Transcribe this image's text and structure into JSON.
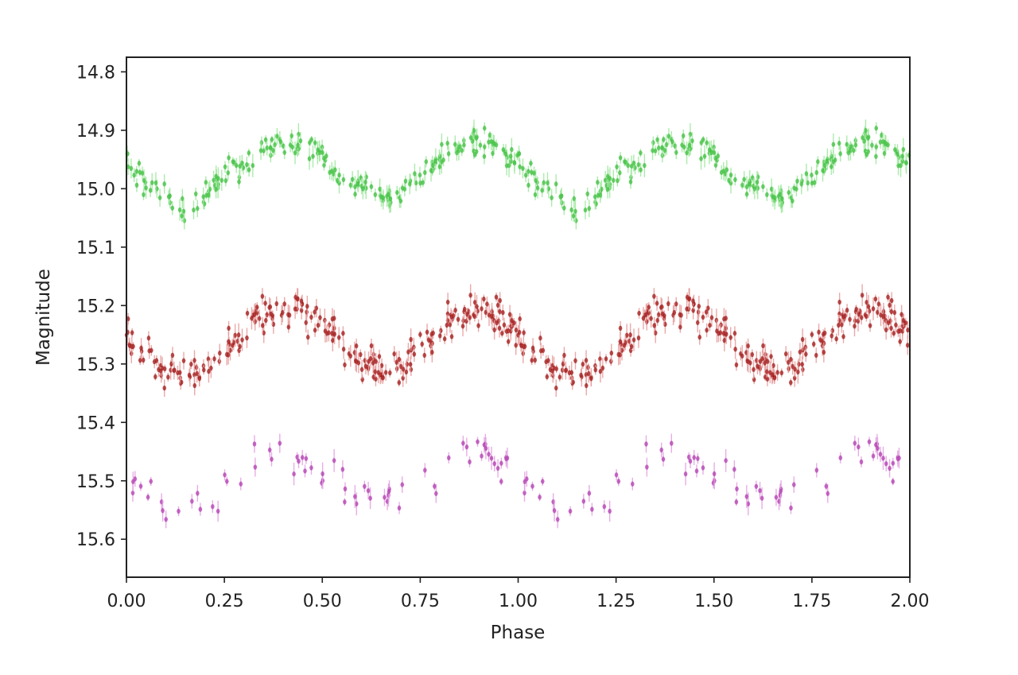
{
  "chart_data": {
    "type": "scatter",
    "title": "",
    "xlabel": "Phase",
    "ylabel": "Magnitude",
    "xlim": [
      0.0,
      2.0
    ],
    "ylim": [
      15.665,
      14.775
    ],
    "y_inverted": true,
    "grid": false,
    "legend": "none",
    "x_ticks": [
      "0.00",
      "0.25",
      "0.50",
      "0.75",
      "1.00",
      "1.25",
      "1.50",
      "1.75",
      "2.00"
    ],
    "x_tick_values": [
      0.0,
      0.25,
      0.5,
      0.75,
      1.0,
      1.25,
      1.5,
      1.75,
      2.0
    ],
    "y_ticks": [
      "14.8",
      "14.9",
      "15.0",
      "15.1",
      "15.2",
      "15.3",
      "15.4",
      "15.5",
      "15.6"
    ],
    "y_tick_values": [
      14.8,
      14.9,
      15.0,
      15.1,
      15.2,
      15.3,
      15.4,
      15.5,
      15.6
    ],
    "series": [
      {
        "color": "#3fbf3f",
        "error_color": "#9ee79e",
        "mean_curve": {
          "phase": [
            0.0,
            0.05,
            0.1,
            0.15,
            0.2,
            0.25,
            0.3,
            0.35,
            0.4,
            0.45,
            0.5,
            0.55,
            0.6,
            0.65,
            0.7,
            0.75,
            0.8,
            0.85,
            0.9,
            0.95,
            1.0
          ],
          "magnitude": [
            14.95,
            14.99,
            15.02,
            15.03,
            15.01,
            14.98,
            14.95,
            14.93,
            14.92,
            14.92,
            14.94,
            14.98,
            15.0,
            15.01,
            15.01,
            14.99,
            14.95,
            14.93,
            14.92,
            14.93,
            14.95
          ]
        },
        "scatter_amplitude": 0.035,
        "points_per_cycle": 220
      },
      {
        "color": "#a01818",
        "error_color": "#e69a9a",
        "mean_curve": {
          "phase": [
            0.0,
            0.05,
            0.1,
            0.15,
            0.2,
            0.25,
            0.3,
            0.35,
            0.4,
            0.45,
            0.5,
            0.55,
            0.6,
            0.65,
            0.7,
            0.75,
            0.8,
            0.85,
            0.9,
            0.95,
            1.0
          ],
          "magnitude": [
            15.25,
            15.29,
            15.31,
            15.32,
            15.31,
            15.28,
            15.24,
            15.21,
            15.21,
            15.21,
            15.23,
            15.27,
            15.3,
            15.31,
            15.3,
            15.28,
            15.24,
            15.22,
            15.21,
            15.22,
            15.25
          ]
        },
        "scatter_amplitude": 0.045,
        "points_per_cycle": 260
      },
      {
        "color": "#b23fb0",
        "error_color": "#e3a0e0",
        "mean_curve": {
          "phase": [
            0.0,
            0.05,
            0.1,
            0.15,
            0.2,
            0.25,
            0.3,
            0.35,
            0.4,
            0.45,
            0.5,
            0.55,
            0.6,
            0.65,
            0.7,
            0.75,
            0.8,
            0.85,
            0.9,
            0.95,
            1.0
          ],
          "magnitude": [
            15.49,
            15.51,
            15.53,
            15.54,
            15.53,
            15.51,
            15.48,
            15.46,
            15.45,
            15.46,
            15.48,
            15.5,
            15.52,
            15.53,
            15.52,
            15.5,
            15.48,
            15.46,
            15.45,
            15.46,
            15.49
          ]
        },
        "scatter_amplitude": 0.05,
        "points_per_cycle": 70
      }
    ]
  }
}
